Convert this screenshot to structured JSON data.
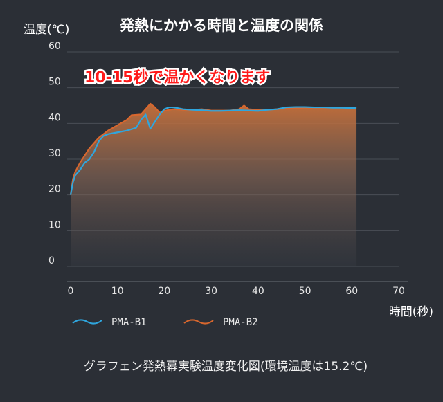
{
  "chart_data": {
    "type": "line",
    "title": "発熱にかかる時間と温度の関係",
    "ylabel": "温度(℃)",
    "xlabel": "時間(秒)",
    "xlim": [
      0,
      70
    ],
    "ylim": [
      0,
      60
    ],
    "xticks": [
      "0",
      "10",
      "20",
      "30",
      "40",
      "50",
      "60",
      "70"
    ],
    "yticks": [
      "0",
      "10",
      "20",
      "30",
      "40",
      "50",
      "60"
    ],
    "grid": true,
    "legend": "bottom-left",
    "annotation": "10-15秒で温かくなります",
    "caption": "グラフェン発熱幕実験温度変化図(環境温度は15.2℃)",
    "series": [
      {
        "name": "PMA-B1",
        "color": "#2fa6de",
        "x": [
          0,
          0.5,
          1,
          2,
          3,
          4,
          5,
          6,
          7,
          8,
          10,
          12,
          14,
          15,
          16,
          17,
          18,
          19,
          20,
          21,
          22,
          24,
          26,
          28,
          30,
          32,
          34,
          36,
          38,
          40,
          42,
          44,
          46,
          48,
          50,
          52,
          54,
          56,
          58,
          60,
          61
        ],
        "y": [
          20,
          23.5,
          25.5,
          27,
          29,
          30,
          32,
          35,
          36.5,
          37,
          37.5,
          38,
          38.8,
          41,
          42.5,
          38.5,
          40.5,
          42.5,
          44,
          44.5,
          44.5,
          44,
          43.8,
          43.7,
          43.5,
          43.5,
          43.6,
          43.7,
          43.6,
          43.5,
          43.8,
          44,
          44.5,
          44.6,
          44.6,
          44.5,
          44.5,
          44.4,
          44.4,
          44.3,
          44.3
        ]
      },
      {
        "name": "PMA-B2",
        "color": "#d8672e",
        "x": [
          0,
          0.5,
          1,
          2,
          3,
          4,
          5,
          6,
          7,
          8,
          10,
          12,
          13,
          15,
          16,
          17,
          18,
          19,
          20,
          21,
          22,
          24,
          26,
          28,
          30,
          32,
          34,
          36,
          37,
          38,
          40,
          42,
          44,
          46,
          48,
          50,
          52,
          54,
          56,
          58,
          60,
          61
        ],
        "y": [
          20,
          24.5,
          26.5,
          29,
          31,
          33,
          34.5,
          36,
          37,
          38,
          39.5,
          41,
          42.3,
          42.5,
          44,
          45.5,
          44.5,
          43,
          43.5,
          43.8,
          44,
          43.8,
          43.8,
          44,
          43.6,
          43.6,
          43.6,
          44,
          45,
          44,
          43.8,
          43.8,
          44,
          44.2,
          44.3,
          44.4,
          44.4,
          44.4,
          44.5,
          44.5,
          44.4,
          44.5
        ]
      }
    ]
  }
}
